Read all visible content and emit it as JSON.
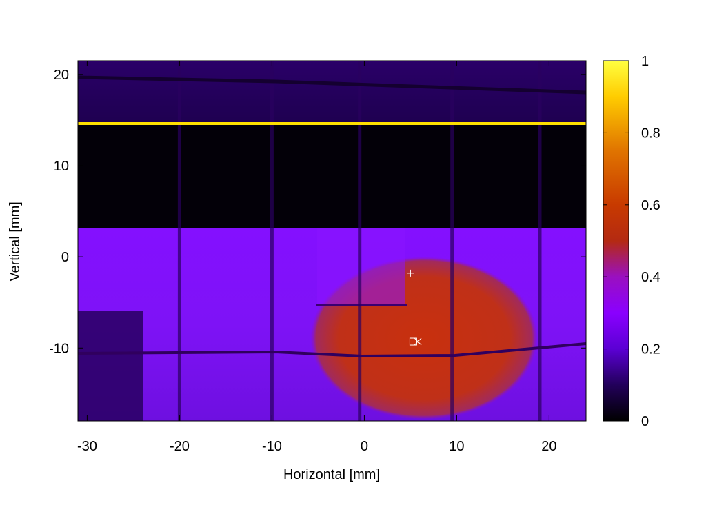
{
  "chart_data": {
    "type": "heatmap",
    "title": "",
    "xlabel": "Horizontal [mm]",
    "ylabel": "Vertical [mm]",
    "xlim": [
      -31,
      24
    ],
    "ylim": [
      -18,
      21.5
    ],
    "x_ticks": [
      -30,
      -20,
      -10,
      0,
      10,
      20
    ],
    "y_ticks": [
      -10,
      0,
      10,
      20
    ],
    "colorbar": {
      "range": [
        0,
        1
      ],
      "ticks": [
        0,
        0.2,
        0.4,
        0.6,
        0.8,
        1
      ],
      "colormap": [
        "#000000",
        "#22005a",
        "#5b00d4",
        "#8a00ff",
        "#c21e86",
        "#b42a12",
        "#d04800",
        "#ee8800",
        "#ffcc00",
        "#ffff40"
      ]
    },
    "features": {
      "background_level": 0.3,
      "dark_band": {
        "y_range": [
          3.3,
          14.6
        ],
        "value": 0.0
      },
      "top_band": {
        "y_range": [
          14.9,
          21.5
        ],
        "value": 0.1
      },
      "bright_line": {
        "y": 14.8,
        "value": 1.0
      },
      "beam_spot": {
        "center": [
          6.5,
          -8.5
        ],
        "radius_x": 14.5,
        "radius_y": 8,
        "value": 0.55
      },
      "grid_lines_x": [
        -20,
        -10,
        -0.5,
        9.5,
        19
      ],
      "grid_lines_y": [
        -10.3,
        20
      ]
    },
    "markers": [
      {
        "symbol": "+",
        "x": 5,
        "y": -1.8
      },
      {
        "symbol": "square",
        "x": 5.3,
        "y": -9.3
      },
      {
        "symbol": "x",
        "x": 5.8,
        "y": -9.3
      }
    ]
  },
  "text": {
    "x_tick_labels": [
      "-30",
      "-20",
      "-10",
      "0",
      "10",
      "20"
    ],
    "y_tick_labels": [
      "-10",
      "0",
      "10",
      "20"
    ],
    "cb_tick_labels": [
      "0",
      "0.2",
      "0.4",
      "0.6",
      "0.8",
      "1"
    ]
  }
}
